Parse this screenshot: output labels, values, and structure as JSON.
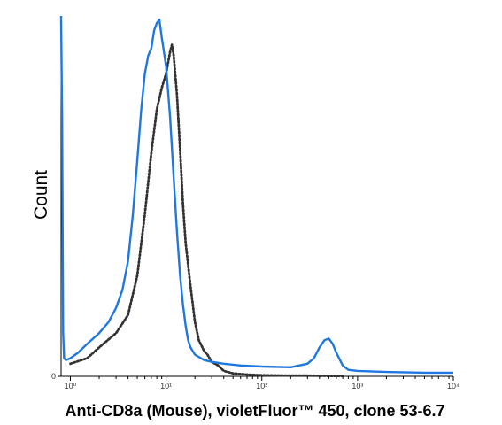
{
  "chart_data": {
    "type": "line",
    "title": "",
    "xlabel": "Anti-CD8a (Mouse), violetFluor™ 450, clone 53-6.7",
    "ylabel": "Count",
    "x_scale": "log",
    "xlim": [
      0.8,
      10000
    ],
    "ylim": [
      0,
      100
    ],
    "x_ticks": [
      {
        "value": 1,
        "label": "10⁰"
      },
      {
        "value": 10,
        "label": "10¹"
      },
      {
        "value": 100,
        "label": "10²"
      },
      {
        "value": 1000,
        "label": "10³"
      },
      {
        "value": 10000,
        "label": "10⁴"
      }
    ],
    "y_ticks": [
      {
        "value": 0,
        "label": "0"
      }
    ],
    "grid": false,
    "legend": "none",
    "series": [
      {
        "line_style": "solid",
        "color": "#1f78e0",
        "points": [
          [
            0.8,
            100
          ],
          [
            0.82,
            70
          ],
          [
            0.84,
            12
          ],
          [
            0.86,
            5
          ],
          [
            0.9,
            4.5
          ],
          [
            1.0,
            5
          ],
          [
            1.2,
            6.5
          ],
          [
            1.5,
            9
          ],
          [
            2.0,
            12
          ],
          [
            2.5,
            15
          ],
          [
            3.0,
            19
          ],
          [
            3.5,
            24
          ],
          [
            4.0,
            32
          ],
          [
            4.5,
            45
          ],
          [
            5.0,
            60
          ],
          [
            5.5,
            74
          ],
          [
            6.0,
            84
          ],
          [
            6.5,
            89
          ],
          [
            7.0,
            91
          ],
          [
            7.5,
            96
          ],
          [
            8.0,
            98
          ],
          [
            8.5,
            99
          ],
          [
            9.0,
            94
          ],
          [
            9.5,
            90
          ],
          [
            10.0,
            86
          ],
          [
            11.0,
            72
          ],
          [
            12.0,
            55
          ],
          [
            13.0,
            40
          ],
          [
            14.0,
            28
          ],
          [
            15.0,
            20
          ],
          [
            16.0,
            14
          ],
          [
            17.0,
            10
          ],
          [
            18.0,
            8
          ],
          [
            20.0,
            6
          ],
          [
            25.0,
            4.5
          ],
          [
            30.0,
            4
          ],
          [
            40.0,
            3.5
          ],
          [
            60.0,
            3
          ],
          [
            100.0,
            2.7
          ],
          [
            200.0,
            2.5
          ],
          [
            300.0,
            3.5
          ],
          [
            350.0,
            5
          ],
          [
            400.0,
            8
          ],
          [
            450.0,
            10
          ],
          [
            500.0,
            10.5
          ],
          [
            550.0,
            9
          ],
          [
            600.0,
            6.5
          ],
          [
            700.0,
            3
          ],
          [
            800.0,
            1.8
          ],
          [
            1000.0,
            1.5
          ],
          [
            2000.0,
            1.2
          ],
          [
            5000.0,
            1.0
          ],
          [
            10000.0,
            1.0
          ]
        ]
      },
      {
        "line_style": "dotted",
        "color": "#333333",
        "points": [
          [
            1.0,
            3.5
          ],
          [
            1.5,
            5
          ],
          [
            2.0,
            8
          ],
          [
            3.0,
            12
          ],
          [
            4.0,
            17
          ],
          [
            5.0,
            28
          ],
          [
            6.0,
            45
          ],
          [
            7.0,
            62
          ],
          [
            8.0,
            74
          ],
          [
            9.0,
            80
          ],
          [
            10.0,
            84
          ],
          [
            11.0,
            90
          ],
          [
            11.5,
            92
          ],
          [
            12.0,
            89
          ],
          [
            13.0,
            78
          ],
          [
            14.0,
            63
          ],
          [
            15.0,
            48
          ],
          [
            16.0,
            37
          ],
          [
            18.0,
            25
          ],
          [
            20.0,
            15
          ],
          [
            22.0,
            10
          ],
          [
            25.0,
            7
          ],
          [
            27.0,
            6
          ],
          [
            30.0,
            4
          ],
          [
            35.0,
            3
          ],
          [
            40.0,
            1.5
          ],
          [
            50.0,
            0.8
          ],
          [
            70.0,
            0.5
          ],
          [
            100.0,
            0.3
          ],
          [
            200.0,
            0.2
          ],
          [
            300.0,
            0.2
          ],
          [
            500.0,
            0.1
          ],
          [
            700.0,
            0.1
          ]
        ]
      }
    ]
  }
}
